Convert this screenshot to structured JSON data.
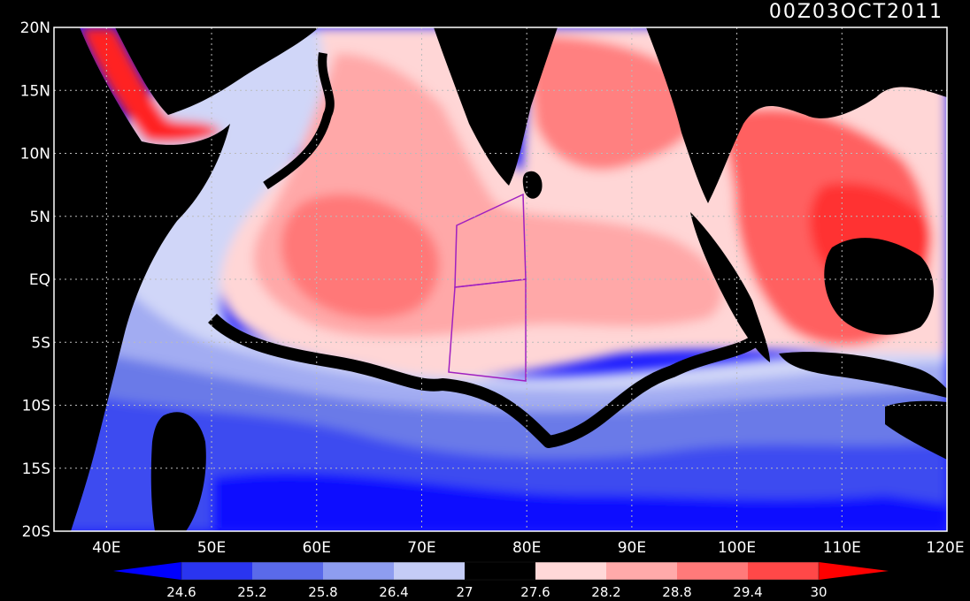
{
  "map": {
    "timestamp": "00Z03OCT2011",
    "lat_labels": [
      "20N",
      "15N",
      "10N",
      "5N",
      "EQ",
      "5S",
      "10S",
      "15S",
      "20S"
    ],
    "lon_labels": [
      "40E",
      "50E",
      "60E",
      "70E",
      "80E",
      "90E",
      "100E",
      "110E",
      "120E"
    ],
    "lon_range": [
      35,
      120
    ],
    "lat_range": [
      -20,
      20
    ],
    "field": "sea surface temperature",
    "grid": "dotted lines every 10° longitude and 5° latitude",
    "colorbar": {
      "levels": [
        "24.6",
        "25.2",
        "25.8",
        "26.4",
        "27",
        "27.6",
        "28.2",
        "28.8",
        "29.4",
        "30"
      ],
      "colors": [
        "#0000ff",
        "#2a35f0",
        "#5a6aea",
        "#8e9df0",
        "#c4ccf6",
        "#000000",
        "#ffd8d8",
        "#ffaaaa",
        "#ff7a7a",
        "#ff4848",
        "#ff0000"
      ],
      "extend": "both"
    },
    "region_box_color": "#a020c0",
    "land_color": "#000000"
  }
}
